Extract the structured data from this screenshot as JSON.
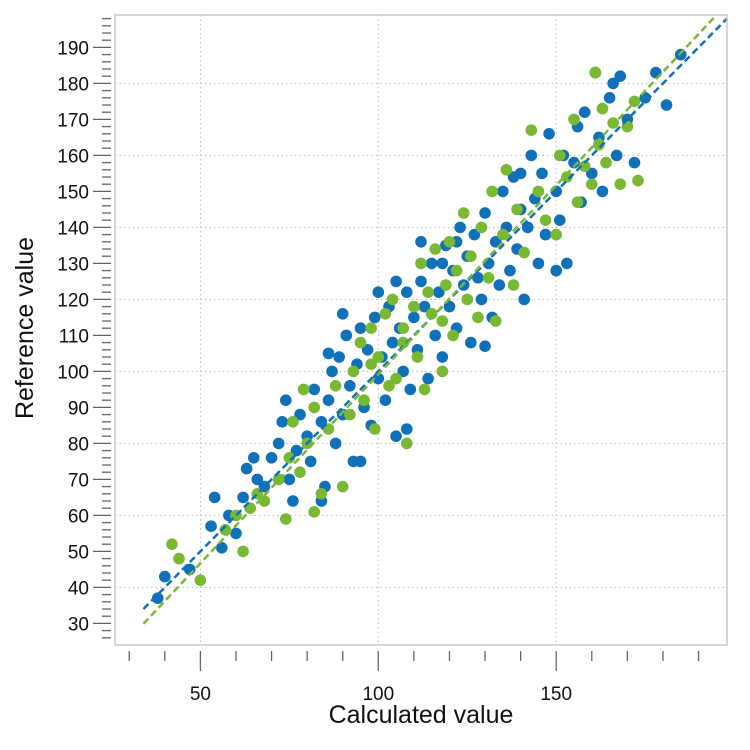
{
  "chart_data": {
    "type": "scatter",
    "xlabel": "Calculated value",
    "ylabel": "Reference value",
    "xlim": [
      26,
      198
    ],
    "ylim": [
      24,
      199
    ],
    "x_ticks": [
      50,
      100,
      150
    ],
    "y_ticks": [
      30,
      40,
      50,
      60,
      70,
      80,
      90,
      100,
      110,
      120,
      130,
      140,
      150,
      160,
      170,
      180,
      190
    ],
    "grid": true,
    "colors": {
      "blue": "#1070b8",
      "green": "#79b833"
    },
    "series": [
      {
        "color": "#1070b8",
        "fit_line": {
          "slope": 1.0,
          "intercept": 0.0,
          "style": "dashed"
        },
        "points": [
          [
            38,
            37
          ],
          [
            40,
            43
          ],
          [
            47,
            45
          ],
          [
            53,
            57
          ],
          [
            54,
            65
          ],
          [
            56,
            51
          ],
          [
            58,
            60
          ],
          [
            60,
            55
          ],
          [
            62,
            65
          ],
          [
            63,
            73
          ],
          [
            65,
            76
          ],
          [
            66,
            70
          ],
          [
            68,
            68
          ],
          [
            70,
            76
          ],
          [
            72,
            80
          ],
          [
            73,
            86
          ],
          [
            74,
            92
          ],
          [
            75,
            70
          ],
          [
            77,
            78
          ],
          [
            78,
            88
          ],
          [
            80,
            82
          ],
          [
            81,
            75
          ],
          [
            82,
            95
          ],
          [
            84,
            86
          ],
          [
            85,
            68
          ],
          [
            86,
            92
          ],
          [
            87,
            100
          ],
          [
            88,
            80
          ],
          [
            89,
            104
          ],
          [
            90,
            88
          ],
          [
            91,
            110
          ],
          [
            92,
            96
          ],
          [
            93,
            75
          ],
          [
            94,
            102
          ],
          [
            95,
            112
          ],
          [
            96,
            90
          ],
          [
            97,
            106
          ],
          [
            98,
            85
          ],
          [
            99,
            115
          ],
          [
            100,
            98
          ],
          [
            101,
            104
          ],
          [
            102,
            92
          ],
          [
            103,
            118
          ],
          [
            104,
            108
          ],
          [
            105,
            82
          ],
          [
            106,
            112
          ],
          [
            107,
            100
          ],
          [
            108,
            122
          ],
          [
            109,
            95
          ],
          [
            110,
            115
          ],
          [
            111,
            106
          ],
          [
            112,
            125
          ],
          [
            113,
            118
          ],
          [
            114,
            98
          ],
          [
            115,
            130
          ],
          [
            116,
            110
          ],
          [
            117,
            122
          ],
          [
            118,
            104
          ],
          [
            119,
            135
          ],
          [
            120,
            118
          ],
          [
            121,
            128
          ],
          [
            122,
            112
          ],
          [
            123,
            140
          ],
          [
            124,
            124
          ],
          [
            125,
            132
          ],
          [
            126,
            108
          ],
          [
            127,
            138
          ],
          [
            128,
            126
          ],
          [
            129,
            120
          ],
          [
            130,
            144
          ],
          [
            131,
            130
          ],
          [
            132,
            115
          ],
          [
            133,
            136
          ],
          [
            134,
            124
          ],
          [
            135,
            150
          ],
          [
            136,
            140
          ],
          [
            137,
            128
          ],
          [
            138,
            154
          ],
          [
            139,
            134
          ],
          [
            140,
            145
          ],
          [
            141,
            120
          ],
          [
            142,
            140
          ],
          [
            143,
            160
          ],
          [
            144,
            148
          ],
          [
            145,
            130
          ],
          [
            146,
            155
          ],
          [
            147,
            138
          ],
          [
            148,
            166
          ],
          [
            150,
            150
          ],
          [
            151,
            142
          ],
          [
            152,
            160
          ],
          [
            153,
            130
          ],
          [
            155,
            158
          ],
          [
            156,
            168
          ],
          [
            157,
            147
          ],
          [
            158,
            172
          ],
          [
            160,
            155
          ],
          [
            161,
            183
          ],
          [
            162,
            165
          ],
          [
            163,
            150
          ],
          [
            165,
            176
          ],
          [
            166,
            180
          ],
          [
            167,
            160
          ],
          [
            168,
            182
          ],
          [
            170,
            170
          ],
          [
            172,
            158
          ],
          [
            175,
            176
          ],
          [
            178,
            183
          ],
          [
            181,
            174
          ],
          [
            185,
            188
          ],
          [
            130,
            107
          ],
          [
            108,
            84
          ],
          [
            95,
            75
          ],
          [
            118,
            130
          ],
          [
            122,
            136
          ],
          [
            100,
            122
          ],
          [
            84,
            64
          ],
          [
            76,
            64
          ],
          [
            90,
            116
          ],
          [
            105,
            125
          ],
          [
            140,
            155
          ],
          [
            150,
            128
          ],
          [
            112,
            136
          ],
          [
            86,
            105
          ]
        ]
      },
      {
        "color": "#79b833",
        "fit_line": {
          "slope": 1.05,
          "intercept": -5.8,
          "style": "dashed"
        },
        "points": [
          [
            42,
            52
          ],
          [
            44,
            48
          ],
          [
            50,
            42
          ],
          [
            57,
            56
          ],
          [
            60,
            60
          ],
          [
            62,
            50
          ],
          [
            64,
            62
          ],
          [
            66,
            66
          ],
          [
            68,
            64
          ],
          [
            72,
            70
          ],
          [
            74,
            59
          ],
          [
            75,
            76
          ],
          [
            76,
            86
          ],
          [
            78,
            72
          ],
          [
            79,
            95
          ],
          [
            80,
            80
          ],
          [
            82,
            90
          ],
          [
            84,
            66
          ],
          [
            86,
            84
          ],
          [
            88,
            96
          ],
          [
            90,
            68
          ],
          [
            92,
            88
          ],
          [
            93,
            100
          ],
          [
            95,
            108
          ],
          [
            96,
            92
          ],
          [
            98,
            112
          ],
          [
            99,
            84
          ],
          [
            100,
            104
          ],
          [
            102,
            116
          ],
          [
            103,
            96
          ],
          [
            104,
            120
          ],
          [
            105,
            98
          ],
          [
            107,
            112
          ],
          [
            108,
            80
          ],
          [
            110,
            118
          ],
          [
            111,
            104
          ],
          [
            112,
            130
          ],
          [
            113,
            95
          ],
          [
            114,
            122
          ],
          [
            115,
            116
          ],
          [
            116,
            134
          ],
          [
            118,
            100
          ],
          [
            119,
            124
          ],
          [
            120,
            136
          ],
          [
            121,
            110
          ],
          [
            122,
            128
          ],
          [
            124,
            144
          ],
          [
            125,
            120
          ],
          [
            126,
            132
          ],
          [
            128,
            115
          ],
          [
            129,
            140
          ],
          [
            131,
            126
          ],
          [
            132,
            150
          ],
          [
            133,
            114
          ],
          [
            135,
            138
          ],
          [
            136,
            156
          ],
          [
            138,
            124
          ],
          [
            139,
            145
          ],
          [
            141,
            133
          ],
          [
            143,
            167
          ],
          [
            145,
            150
          ],
          [
            147,
            142
          ],
          [
            150,
            138
          ],
          [
            151,
            160
          ],
          [
            153,
            154
          ],
          [
            155,
            170
          ],
          [
            156,
            147
          ],
          [
            158,
            157
          ],
          [
            160,
            152
          ],
          [
            161,
            183
          ],
          [
            162,
            163
          ],
          [
            163,
            173
          ],
          [
            164,
            158
          ],
          [
            166,
            169
          ],
          [
            168,
            152
          ],
          [
            170,
            168
          ],
          [
            172,
            175
          ],
          [
            173,
            153
          ],
          [
            82,
            61
          ],
          [
            98,
            102
          ],
          [
            107,
            108
          ],
          [
            118,
            114
          ]
        ]
      }
    ]
  }
}
